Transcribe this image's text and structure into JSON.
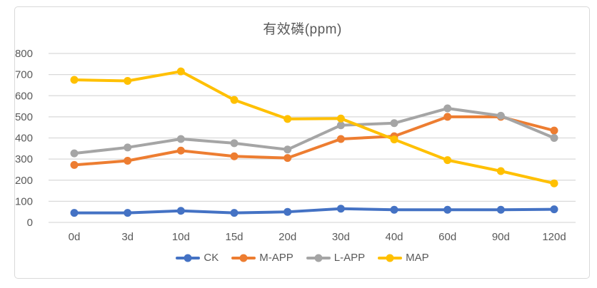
{
  "chart_data": {
    "type": "line",
    "title": "有效磷(ppm)",
    "xlabel": "",
    "ylabel": "",
    "categories": [
      "0d",
      "3d",
      "10d",
      "15d",
      "20d",
      "30d",
      "40d",
      "60d",
      "90d",
      "120d"
    ],
    "series": [
      {
        "name": "CK",
        "color": "#4472C4",
        "values": [
          45,
          45,
          55,
          45,
          50,
          65,
          60,
          60,
          60,
          62
        ]
      },
      {
        "name": "M-APP",
        "color": "#ED7D31",
        "values": [
          272,
          292,
          340,
          313,
          305,
          395,
          408,
          500,
          500,
          435
        ]
      },
      {
        "name": "L-APP",
        "color": "#A5A5A5",
        "values": [
          327,
          355,
          395,
          375,
          345,
          460,
          470,
          540,
          505,
          400
        ]
      },
      {
        "name": "MAP",
        "color": "#FFC000",
        "values": [
          675,
          670,
          715,
          580,
          490,
          492,
          393,
          295,
          243,
          185
        ]
      }
    ],
    "ylim": [
      0,
      800
    ],
    "ytick_interval": 100,
    "ytick_labels": [
      "0",
      "100",
      "200",
      "300",
      "400",
      "500",
      "600",
      "700",
      "800"
    ],
    "grid": "horizontal",
    "legend_position": "bottom",
    "marker": "circle"
  },
  "colors": {
    "grid": "#D9D9D9",
    "text": "#595959",
    "frame_border": "#D9D9D9",
    "background": "#FFFFFF"
  }
}
